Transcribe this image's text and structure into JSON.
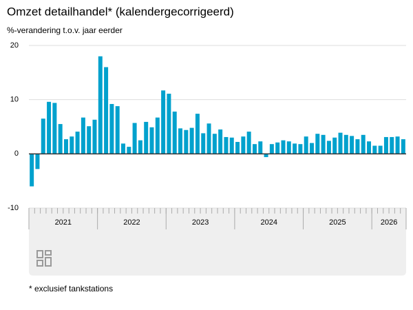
{
  "chart_data": {
    "type": "bar",
    "title": "Omzet detailhandel* (kalendergecorrigeerd)",
    "subtitle": "%-verandering t.o.v. jaar eerder",
    "footnote": "* exclusief tankstations",
    "categories": [
      "2021",
      null,
      null,
      null,
      null,
      null,
      null,
      null,
      null,
      null,
      null,
      null,
      "2022",
      null,
      null,
      null,
      null,
      null,
      null,
      null,
      null,
      null,
      null,
      null,
      "2023",
      null,
      null,
      null,
      null,
      null,
      null,
      null,
      null,
      null,
      null,
      null,
      "2024",
      null,
      null,
      null,
      null,
      null,
      null,
      null,
      null,
      null,
      null,
      null,
      "2025",
      null,
      null,
      null,
      null,
      null,
      null,
      null,
      null,
      null,
      null,
      null,
      "2026",
      null,
      null,
      null,
      null,
      null
    ],
    "values": [
      -6.0,
      -2.8,
      6.5,
      9.6,
      9.4,
      5.5,
      2.7,
      3.2,
      4.1,
      6.7,
      5.1,
      6.3,
      18.0,
      16.0,
      9.2,
      8.8,
      1.9,
      1.3,
      5.7,
      2.5,
      5.9,
      4.9,
      6.7,
      11.7,
      11.1,
      7.8,
      4.7,
      4.4,
      4.8,
      7.4,
      3.8,
      5.6,
      3.7,
      4.5,
      3.1,
      3.0,
      2.2,
      3.2,
      4.1,
      1.8,
      2.3,
      -0.6,
      1.8,
      2.1,
      2.5,
      2.3,
      1.9,
      1.8,
      3.2,
      2.0,
      3.7,
      3.5,
      2.4,
      3.0,
      3.9,
      3.5,
      3.3,
      2.7,
      3.5,
      2.3,
      1.5,
      1.5,
      3.1,
      3.1,
      3.2,
      2.7
    ],
    "color": "#00a1cd",
    "ylim": [
      -10,
      20
    ],
    "yticks": [
      -10,
      0,
      10,
      20
    ],
    "grid": true
  }
}
